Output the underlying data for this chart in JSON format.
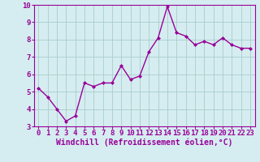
{
  "x": [
    0,
    1,
    2,
    3,
    4,
    5,
    6,
    7,
    8,
    9,
    10,
    11,
    12,
    13,
    14,
    15,
    16,
    17,
    18,
    19,
    20,
    21,
    22,
    23
  ],
  "y": [
    5.2,
    4.7,
    4.0,
    3.3,
    3.6,
    5.5,
    5.3,
    5.5,
    5.5,
    6.5,
    5.7,
    5.9,
    7.3,
    8.1,
    9.9,
    8.4,
    8.2,
    7.7,
    7.9,
    7.7,
    8.1,
    7.7,
    7.5,
    7.5
  ],
  "line_color": "#990099",
  "marker": "D",
  "marker_size": 2.0,
  "background_color": "#d5edf0",
  "grid_color": "#aacccc",
  "xlabel": "Windchill (Refroidissement éolien,°C)",
  "xlabel_color": "#990099",
  "tick_color": "#990099",
  "ylim": [
    3,
    10
  ],
  "xlim": [
    -0.5,
    23.5
  ],
  "yticks": [
    3,
    4,
    5,
    6,
    7,
    8,
    9,
    10
  ],
  "xticks": [
    0,
    1,
    2,
    3,
    4,
    5,
    6,
    7,
    8,
    9,
    10,
    11,
    12,
    13,
    14,
    15,
    16,
    17,
    18,
    19,
    20,
    21,
    22,
    23
  ],
  "spine_color": "#990099",
  "font_size": 6.5,
  "xlabel_fontsize": 7.0,
  "linewidth": 1.0
}
